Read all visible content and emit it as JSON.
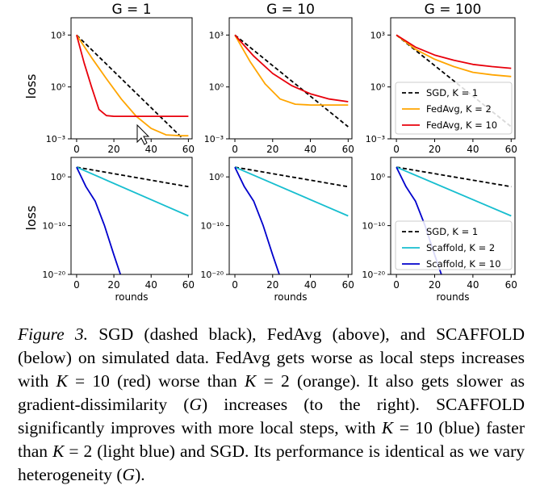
{
  "figure": {
    "column_titles": [
      "G = 1",
      "G = 10",
      "G = 100"
    ],
    "row_ylabel": "loss",
    "xlabel": "rounds",
    "xticks": [
      "0",
      "20",
      "40",
      "60"
    ],
    "top_yticks": [
      "10³",
      "10⁰",
      "10⁻³"
    ],
    "bottom_yticks": [
      "10⁰",
      "10⁻¹⁰",
      "10⁻²⁰"
    ]
  },
  "chart_data": [
    {
      "type": "line",
      "title": "G = 1",
      "row": "top",
      "ylabel": "loss",
      "yscale": "log",
      "xlim": [
        -3,
        62
      ],
      "ylim_log10": [
        -3,
        4
      ],
      "series": [
        {
          "name": "SGD, K = 1",
          "color": "#000000",
          "style": "dashed",
          "x": [
            0,
            60
          ],
          "y": [
            1000,
            0.0005
          ]
        },
        {
          "name": "FedAvg, K = 2",
          "color": "#ffa500",
          "style": "solid",
          "x": [
            0,
            8,
            16,
            24,
            32,
            40,
            48,
            56,
            60
          ],
          "y": [
            1000,
            50,
            3,
            0.2,
            0.02,
            0.004,
            0.0017,
            0.0015,
            0.0015
          ]
        },
        {
          "name": "FedAvg, K = 10",
          "color": "#e8000b",
          "style": "solid",
          "x": [
            0,
            4,
            8,
            12,
            16,
            20,
            30,
            60
          ],
          "y": [
            1000,
            25,
            1,
            0.05,
            0.022,
            0.02,
            0.02,
            0.02
          ]
        }
      ]
    },
    {
      "type": "line",
      "title": "G = 10",
      "row": "top",
      "ylabel": "",
      "yscale": "log",
      "xlim": [
        -3,
        62
      ],
      "ylim_log10": [
        -3,
        4
      ],
      "series": [
        {
          "name": "SGD, K = 1",
          "color": "#000000",
          "style": "dashed",
          "x": [
            0,
            60
          ],
          "y": [
            1000,
            0.005
          ]
        },
        {
          "name": "FedAvg, K = 2",
          "color": "#ffa500",
          "style": "solid",
          "x": [
            0,
            8,
            16,
            24,
            32,
            40,
            60
          ],
          "y": [
            1000,
            30,
            1.5,
            0.2,
            0.1,
            0.09,
            0.09
          ]
        },
        {
          "name": "FedAvg, K = 10",
          "color": "#e8000b",
          "style": "solid",
          "x": [
            0,
            10,
            20,
            30,
            40,
            50,
            60
          ],
          "y": [
            1000,
            60,
            6,
            1.2,
            0.4,
            0.2,
            0.14
          ]
        }
      ]
    },
    {
      "type": "line",
      "title": "G = 100",
      "row": "top",
      "ylabel": "",
      "yscale": "log",
      "xlim": [
        -3,
        62
      ],
      "ylim_log10": [
        -3,
        4
      ],
      "legend": "lower-right",
      "series": [
        {
          "name": "SGD, K = 1",
          "color": "#000000",
          "style": "dashed",
          "x": [
            0,
            60
          ],
          "y": [
            1000,
            0.005
          ]
        },
        {
          "name": "FedAvg, K = 2",
          "color": "#ffa500",
          "style": "solid",
          "x": [
            0,
            10,
            20,
            30,
            40,
            50,
            60
          ],
          "y": [
            1000,
            150,
            40,
            15,
            7,
            5,
            4
          ]
        },
        {
          "name": "FedAvg, K = 10",
          "color": "#e8000b",
          "style": "solid",
          "x": [
            0,
            10,
            20,
            30,
            40,
            50,
            60
          ],
          "y": [
            1000,
            200,
            70,
            35,
            20,
            15,
            12
          ]
        }
      ]
    },
    {
      "type": "line",
      "title": "",
      "row": "bottom",
      "ylabel": "loss",
      "xlabel": "rounds",
      "yscale": "log",
      "xlim": [
        -3,
        62
      ],
      "ylim_log10": [
        -20,
        4
      ],
      "series": [
        {
          "name": "SGD, K = 1",
          "color": "#000000",
          "style": "dashed",
          "x": [
            0,
            60
          ],
          "y": [
            100,
            0.01
          ]
        },
        {
          "name": "Scaffold, K = 2",
          "color": "#17becf",
          "style": "solid",
          "x": [
            0,
            60
          ],
          "y": [
            100,
            1e-08
          ]
        },
        {
          "name": "Scaffold, K = 10",
          "color": "#0000cc",
          "style": "solid",
          "x": [
            0,
            5,
            10,
            15,
            20,
            23.5
          ],
          "y": [
            100,
            0.01,
            1e-05,
            1e-10,
            1e-16,
            1e-20
          ]
        }
      ]
    },
    {
      "type": "line",
      "title": "",
      "row": "bottom",
      "ylabel": "",
      "xlabel": "rounds",
      "yscale": "log",
      "xlim": [
        -3,
        62
      ],
      "ylim_log10": [
        -20,
        4
      ],
      "series": [
        {
          "name": "SGD, K = 1",
          "color": "#000000",
          "style": "dashed",
          "x": [
            0,
            60
          ],
          "y": [
            100,
            0.01
          ]
        },
        {
          "name": "Scaffold, K = 2",
          "color": "#17becf",
          "style": "solid",
          "x": [
            0,
            60
          ],
          "y": [
            100,
            1e-08
          ]
        },
        {
          "name": "Scaffold, K = 10",
          "color": "#0000cc",
          "style": "solid",
          "x": [
            0,
            5,
            10,
            15,
            20,
            23.5
          ],
          "y": [
            100,
            0.01,
            1e-05,
            1e-10,
            1e-16,
            1e-20
          ]
        }
      ]
    },
    {
      "type": "line",
      "title": "",
      "row": "bottom",
      "ylabel": "",
      "xlabel": "rounds",
      "yscale": "log",
      "xlim": [
        -3,
        62
      ],
      "ylim_log10": [
        -20,
        4
      ],
      "legend": "lower-right",
      "series": [
        {
          "name": "SGD, K = 1",
          "color": "#000000",
          "style": "dashed",
          "x": [
            0,
            60
          ],
          "y": [
            100,
            0.01
          ]
        },
        {
          "name": "Scaffold, K = 2",
          "color": "#17becf",
          "style": "solid",
          "x": [
            0,
            60
          ],
          "y": [
            100,
            1e-08
          ]
        },
        {
          "name": "Scaffold, K = 10",
          "color": "#0000cc",
          "style": "solid",
          "x": [
            0,
            5,
            10,
            15,
            20,
            23.5
          ],
          "y": [
            100,
            0.01,
            1e-05,
            1e-10,
            1e-16,
            1e-20
          ]
        }
      ]
    }
  ],
  "caption": {
    "label": "Figure 3.",
    "p1": " SGD (dashed black), FedAvg (above), and SCAFFOLD (below) on simulated data. FedAvg gets worse as local steps increases with ",
    "k1": "K",
    "p2": " = 10 (red) worse than ",
    "k2": "K",
    "p3": " = 2 (orange). It also gets slower as gradient-dissimilarity (",
    "g1": "G",
    "p4": ") increases (to the right). SCAFFOLD significantly improves with more local steps, with ",
    "k3": "K",
    "p5": " = 10 (blue) faster than ",
    "k4": "K",
    "p6": " = 2 (light blue) and SGD. Its performance is identical as we vary heterogeneity (",
    "g2": "G",
    "p7": ")."
  }
}
